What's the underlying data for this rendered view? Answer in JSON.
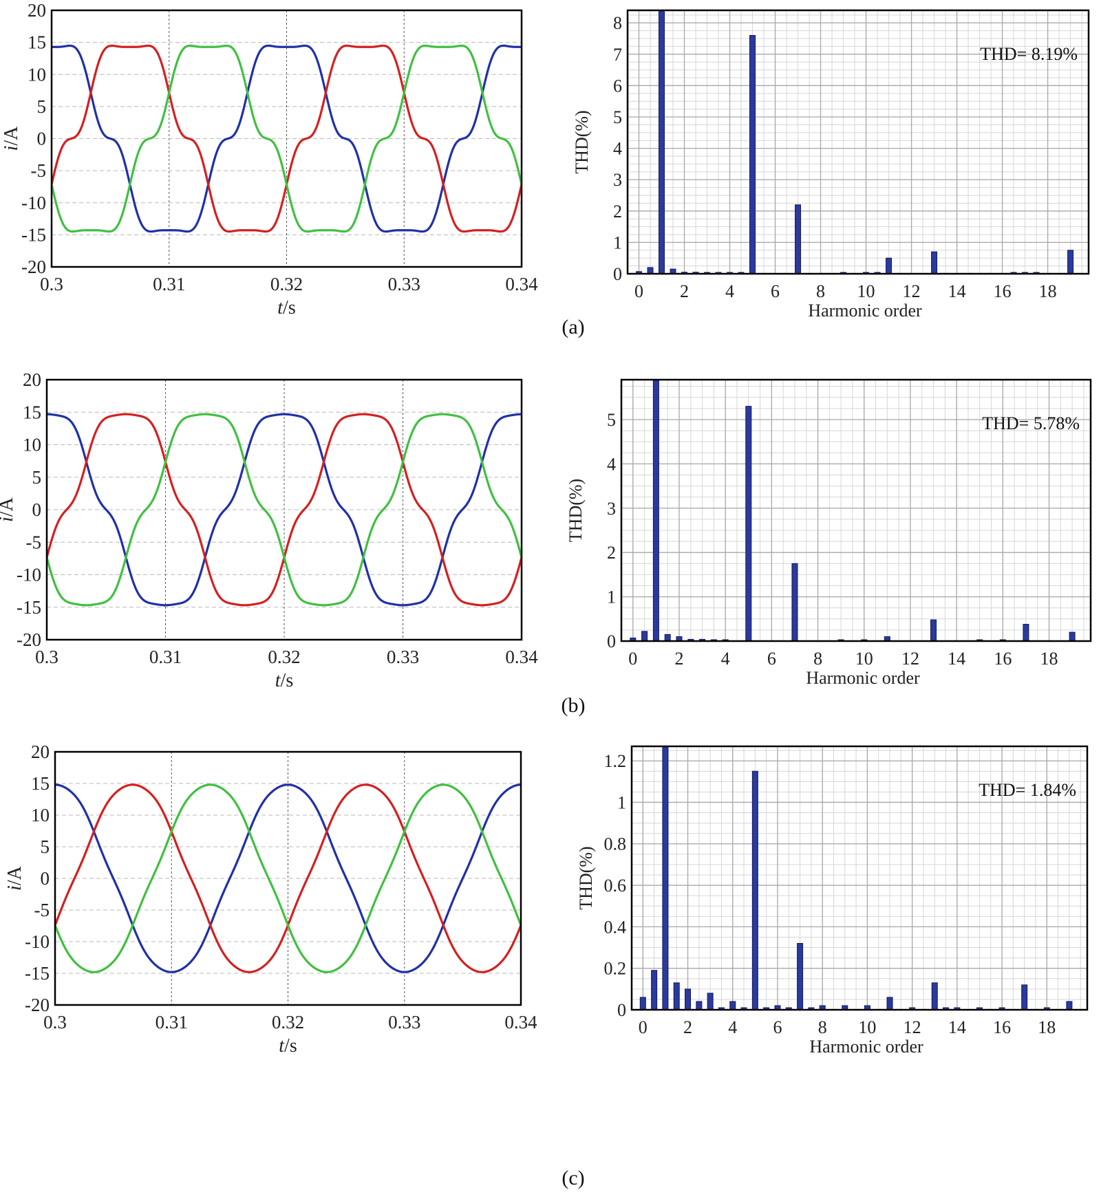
{
  "panels": [
    {
      "caption": "(a)",
      "current": {
        "type": "line",
        "xlabel_italic": "t",
        "xlabel_unit": "/s",
        "ylabel_italic": "i",
        "ylabel_unit": "/A",
        "xlim": [
          0.3,
          0.34
        ],
        "ylim": [
          -20,
          20
        ],
        "xticks": [
          "0.3",
          "0.31",
          "0.32",
          "0.33",
          "0.34"
        ],
        "yticks": [
          "20",
          "15",
          "10",
          "5",
          "0",
          "-5",
          "-10",
          "-15",
          "-20"
        ],
        "amplitude": 15.5,
        "frequency_hz": 50,
        "distortion": 0.12,
        "series": [
          {
            "color": "#2030a8",
            "phase_deg": 90
          },
          {
            "color": "#d42020",
            "phase_deg": -30
          },
          {
            "color": "#40c040",
            "phase_deg": 210
          }
        ]
      },
      "spectrum": {
        "type": "bar",
        "xlabel": "Harmonic order",
        "ylabel": "THD(%)",
        "annotation": "THD= 8.19%",
        "ylim": [
          0,
          8.4
        ],
        "yticks": [
          0,
          1,
          2,
          3,
          4,
          5,
          6,
          7,
          8
        ],
        "xticks": [
          "0",
          "2",
          "4",
          "6",
          "8",
          "10",
          "12",
          "14",
          "16",
          "18"
        ],
        "bar_color": "#2a3a9e",
        "bars": [
          [
            0,
            0.07
          ],
          [
            0.5,
            0.2
          ],
          [
            1,
            8.4
          ],
          [
            1.5,
            0.15
          ],
          [
            2,
            0.05
          ],
          [
            2.5,
            0.05
          ],
          [
            3,
            0.04
          ],
          [
            3.5,
            0.04
          ],
          [
            4,
            0.03
          ],
          [
            4.5,
            0.03
          ],
          [
            5,
            7.6
          ],
          [
            7,
            2.2
          ],
          [
            9,
            0.03
          ],
          [
            10,
            0.03
          ],
          [
            10.5,
            0.04
          ],
          [
            11,
            0.5
          ],
          [
            13,
            0.7
          ],
          [
            16.5,
            0.03
          ],
          [
            17,
            0.04
          ],
          [
            17.5,
            0.03
          ],
          [
            19,
            0.75
          ]
        ]
      }
    },
    {
      "caption": "(b)",
      "current": {
        "type": "line",
        "xlabel_italic": "t",
        "xlabel_unit": "/s",
        "ylabel_italic": "i",
        "ylabel_unit": "/A",
        "xlim": [
          0.3,
          0.34
        ],
        "ylim": [
          -20,
          20
        ],
        "xticks": [
          "0.3",
          "0.31",
          "0.32",
          "0.33",
          "0.34"
        ],
        "yticks": [
          "20",
          "15",
          "10",
          "5",
          "0",
          "-5",
          "-10",
          "-15",
          "-20"
        ],
        "amplitude": 15.5,
        "frequency_hz": 50,
        "distortion": 0.08,
        "series": [
          {
            "color": "#2030a8",
            "phase_deg": 90
          },
          {
            "color": "#d42020",
            "phase_deg": -30
          },
          {
            "color": "#40c040",
            "phase_deg": 210
          }
        ]
      },
      "spectrum": {
        "type": "bar",
        "xlabel": "Harmonic order",
        "ylabel": "THD(%)",
        "annotation": "THD= 5.78%",
        "ylim": [
          0,
          5.9
        ],
        "yticks": [
          0,
          1,
          2,
          3,
          4,
          5
        ],
        "xticks": [
          "0",
          "2",
          "4",
          "6",
          "8",
          "10",
          "12",
          "14",
          "16",
          "18"
        ],
        "bar_color": "#2a3a9e",
        "bars": [
          [
            0,
            0.07
          ],
          [
            0.5,
            0.22
          ],
          [
            1,
            5.9
          ],
          [
            1.5,
            0.15
          ],
          [
            2,
            0.1
          ],
          [
            2.5,
            0.04
          ],
          [
            3,
            0.04
          ],
          [
            3.5,
            0.03
          ],
          [
            4,
            0.03
          ],
          [
            5,
            5.3
          ],
          [
            7,
            1.75
          ],
          [
            9,
            0.02
          ],
          [
            10,
            0.02
          ],
          [
            11,
            0.1
          ],
          [
            13,
            0.48
          ],
          [
            15,
            0.02
          ],
          [
            16,
            0.02
          ],
          [
            17,
            0.38
          ],
          [
            19,
            0.2
          ]
        ]
      }
    },
    {
      "caption": "(c)",
      "current": {
        "type": "line",
        "xlabel_italic": "t",
        "xlabel_unit": "/s",
        "ylabel_italic": "i",
        "ylabel_unit": "/A",
        "xlim": [
          0.3,
          0.34
        ],
        "ylim": [
          -20,
          20
        ],
        "xticks": [
          "0.3",
          "0.31",
          "0.32",
          "0.33",
          "0.34"
        ],
        "yticks": [
          "20",
          "15",
          "10",
          "5",
          "0",
          "-5",
          "-10",
          "-15",
          "-20"
        ],
        "amplitude": 15,
        "frequency_hz": 50,
        "distortion": 0.02,
        "series": [
          {
            "color": "#2030a8",
            "phase_deg": 90
          },
          {
            "color": "#d42020",
            "phase_deg": -30
          },
          {
            "color": "#40c040",
            "phase_deg": 210
          }
        ]
      },
      "spectrum": {
        "type": "bar",
        "xlabel": "Harmonic order",
        "ylabel": "THD(%)",
        "annotation": "THD= 1.84%",
        "ylim": [
          0,
          1.27
        ],
        "yticks": [
          "0",
          "0.2",
          "0.4",
          "0.6",
          "0.8",
          "1",
          "1.2"
        ],
        "ytick_values": [
          0,
          0.2,
          0.4,
          0.6,
          0.8,
          1.0,
          1.2
        ],
        "xticks": [
          "0",
          "2",
          "4",
          "6",
          "8",
          "10",
          "12",
          "14",
          "16",
          "18"
        ],
        "bar_color": "#2a3a9e",
        "bars": [
          [
            0,
            0.06
          ],
          [
            0.5,
            0.19
          ],
          [
            1,
            1.27
          ],
          [
            1.5,
            0.13
          ],
          [
            2,
            0.1
          ],
          [
            2.5,
            0.04
          ],
          [
            3,
            0.08
          ],
          [
            3.5,
            0.01
          ],
          [
            4,
            0.04
          ],
          [
            4.5,
            0.01
          ],
          [
            5,
            1.15
          ],
          [
            5.5,
            0.01
          ],
          [
            6,
            0.02
          ],
          [
            6.5,
            0.01
          ],
          [
            7,
            0.32
          ],
          [
            7.5,
            0.01
          ],
          [
            8,
            0.02
          ],
          [
            9,
            0.02
          ],
          [
            10,
            0.02
          ],
          [
            11,
            0.06
          ],
          [
            12,
            0.01
          ],
          [
            13,
            0.13
          ],
          [
            13.5,
            0.01
          ],
          [
            14,
            0.01
          ],
          [
            15,
            0.01
          ],
          [
            16,
            0.01
          ],
          [
            17,
            0.12
          ],
          [
            18,
            0.01
          ],
          [
            19,
            0.04
          ]
        ]
      }
    }
  ]
}
